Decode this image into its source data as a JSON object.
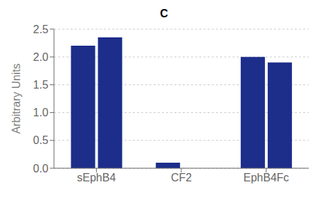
{
  "chart_data": {
    "type": "bar",
    "title": "C",
    "ylabel": "Arbitrary Units",
    "categories": [
      "sEphB4",
      "CF2",
      "EphB4Fc"
    ],
    "series": [
      {
        "values": [
          2.2,
          0.1,
          2.0
        ]
      },
      {
        "values": [
          2.35,
          null,
          1.9
        ]
      }
    ],
    "color": "#1c2d8a",
    "ylim": [
      0,
      2.5
    ],
    "yticks": [
      {
        "value": 0,
        "label": "0.0"
      },
      0.5,
      {
        "value": 1,
        "label": "1.0"
      },
      1.5,
      {
        "value": 2,
        "label": "2.0"
      },
      2.5
    ],
    "grid": true
  }
}
